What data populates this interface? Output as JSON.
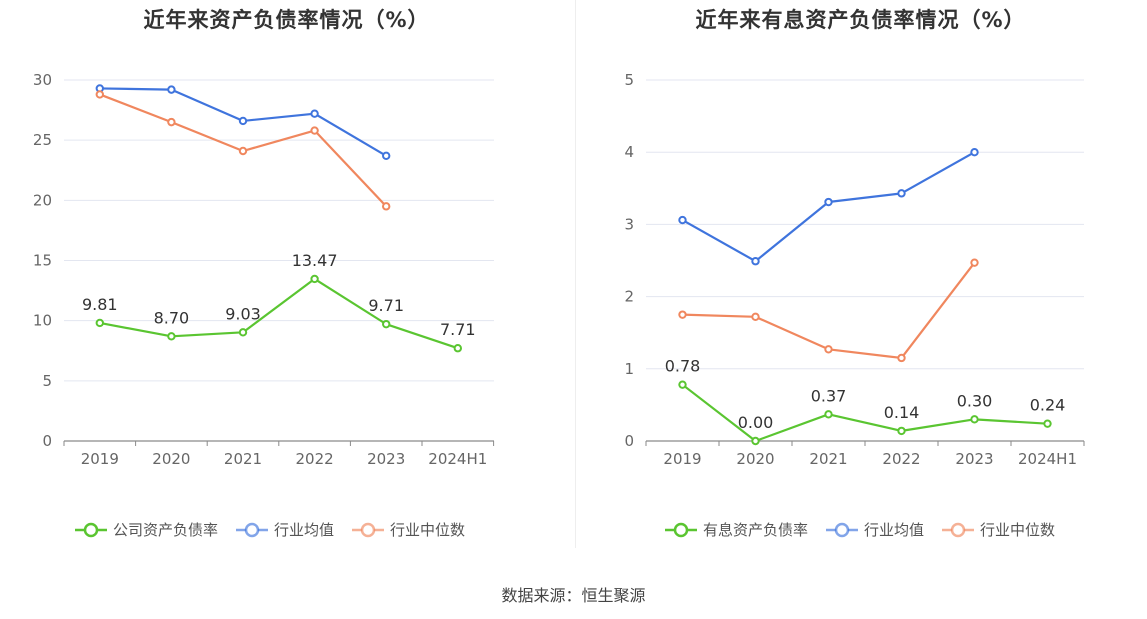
{
  "chart_data": [
    {
      "type": "line",
      "title": "近年来资产负债率情况（%）",
      "categories": [
        "2019",
        "2020",
        "2021",
        "2022",
        "2023",
        "2024H1"
      ],
      "ylim": [
        0,
        30
      ],
      "yticks": [
        0,
        5,
        10,
        15,
        20,
        25,
        30
      ],
      "grid": true,
      "legend_position": "bottom",
      "series": [
        {
          "name": "公司资产负债率",
          "color": "#5ac531",
          "labeled": true,
          "values": [
            9.81,
            8.7,
            9.03,
            13.47,
            9.71,
            7.71
          ],
          "labels": [
            "9.81",
            "8.70",
            "9.03",
            "13.47",
            "9.71",
            "7.71"
          ]
        },
        {
          "name": "行业均值",
          "color": "#3f74dd",
          "labeled": false,
          "values": [
            29.3,
            29.2,
            26.6,
            27.2,
            23.7,
            null
          ]
        },
        {
          "name": "行业中位数",
          "color": "#f0875e",
          "labeled": false,
          "values": [
            28.8,
            26.5,
            24.1,
            25.8,
            19.5,
            null
          ]
        }
      ]
    },
    {
      "type": "line",
      "title": "近年来有息资产负债率情况（%）",
      "categories": [
        "2019",
        "2020",
        "2021",
        "2022",
        "2023",
        "2024H1"
      ],
      "ylim": [
        0,
        5
      ],
      "yticks": [
        0,
        1,
        2,
        3,
        4,
        5
      ],
      "grid": true,
      "legend_position": "bottom",
      "series": [
        {
          "name": "有息资产负债率",
          "color": "#5ac531",
          "labeled": true,
          "values": [
            0.78,
            0.0,
            0.37,
            0.14,
            0.3,
            0.24
          ],
          "labels": [
            "0.78",
            "0.00",
            "0.37",
            "0.14",
            "0.30",
            "0.24"
          ]
        },
        {
          "name": "行业均值",
          "color": "#3f74dd",
          "labeled": false,
          "values": [
            3.06,
            2.49,
            3.31,
            3.43,
            4.0,
            null
          ]
        },
        {
          "name": "行业中位数",
          "color": "#f0875e",
          "labeled": false,
          "values": [
            1.75,
            1.72,
            1.27,
            1.15,
            2.47,
            null
          ]
        }
      ]
    }
  ],
  "footer": {
    "source": "数据来源：恒生聚源"
  }
}
